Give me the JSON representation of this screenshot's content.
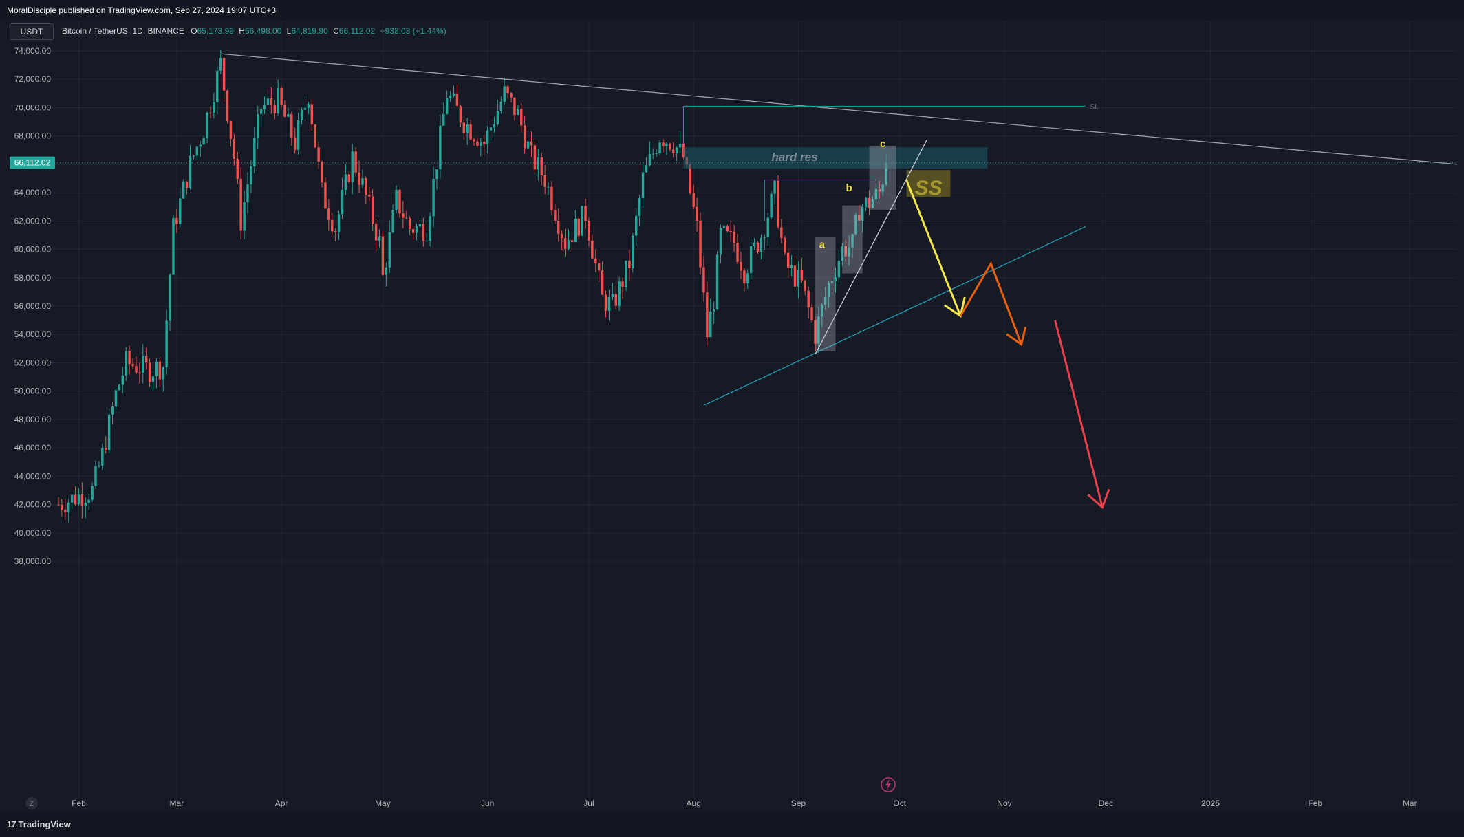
{
  "header": {
    "published_text": "MoralDisciple published on TradingView.com, Sep 27, 2024 19:07 UTC+3"
  },
  "symbol_box": {
    "label": "USDT"
  },
  "legend": {
    "symbol": "Bitcoin / TetherUS, 1D, BINANCE",
    "o_label": "O",
    "o_value": "65,173.99",
    "h_label": "H",
    "h_value": "66,498.00",
    "l_label": "L",
    "l_value": "64,819.90",
    "c_label": "C",
    "c_value": "66,112.02",
    "change": "+938.03 (+1.44%)"
  },
  "footer": {
    "brand": "TradingView",
    "brand_mark": "17",
    "scale_z": "Z"
  },
  "colors": {
    "background": "#161a25",
    "grid": "#232734",
    "up": "#26a69a",
    "down": "#ef5350",
    "trendline": "#9ba1b0",
    "cyan_line": "#1e9fb4",
    "yellow_arrow": "#f5e84a",
    "orange_arrow": "#e8600f",
    "red_arrow": "#e8404c",
    "price_label": "#26a69a"
  },
  "chart_data": {
    "type": "candlestick",
    "symbol": "Bitcoin / TetherUS",
    "interval": "1D",
    "exchange": "BINANCE",
    "last_price": 66112.02,
    "last_price_label": "66,112.02",
    "y_axis": {
      "range": [
        37000,
        75000
      ],
      "ticks": [
        74000,
        72000,
        70000,
        68000,
        66000,
        64000,
        62000,
        60000,
        58000,
        56000,
        54000,
        52000,
        50000,
        48000,
        46000,
        44000,
        42000,
        40000,
        38000
      ],
      "tick_labels": [
        "74,000.00",
        "72,000.00",
        "70,000.00",
        "68,000.00",
        "64,000.00",
        "62,000.00",
        "60,000.00",
        "58,000.00",
        "56,000.00",
        "54,000.00",
        "52,000.00",
        "50,000.00",
        "48,000.00",
        "46,000.00",
        "44,000.00",
        "42,000.00",
        "40,000.00",
        "38,000.00"
      ],
      "tick_label_values": [
        74000,
        72000,
        70000,
        68000,
        64000,
        62000,
        60000,
        58000,
        56000,
        54000,
        52000,
        50000,
        48000,
        46000,
        44000,
        42000,
        40000,
        38000
      ]
    },
    "x_axis": {
      "range": [
        "2024-01-26",
        "2025-03-15"
      ],
      "ticks": [
        {
          "date": "2024-02-01",
          "label": "Feb"
        },
        {
          "date": "2024-03-01",
          "label": "Mar"
        },
        {
          "date": "2024-04-01",
          "label": "Apr"
        },
        {
          "date": "2024-05-01",
          "label": "May"
        },
        {
          "date": "2024-06-01",
          "label": "Jun"
        },
        {
          "date": "2024-07-01",
          "label": "Jul"
        },
        {
          "date": "2024-08-01",
          "label": "Aug"
        },
        {
          "date": "2024-09-01",
          "label": "Sep"
        },
        {
          "date": "2024-10-01",
          "label": "Oct"
        },
        {
          "date": "2024-11-01",
          "label": "Nov"
        },
        {
          "date": "2024-12-01",
          "label": "Dec"
        },
        {
          "date": "2025-01-01",
          "label": "2025"
        },
        {
          "date": "2025-02-01",
          "label": "Feb"
        },
        {
          "date": "2025-03-01",
          "label": "Mar"
        }
      ]
    },
    "price_path": [
      [
        "2024-01-26",
        42000
      ],
      [
        "2024-02-05",
        43000
      ],
      [
        "2024-02-08",
        45500
      ],
      [
        "2024-02-12",
        49800
      ],
      [
        "2024-02-15",
        52000
      ],
      [
        "2024-02-22",
        51500
      ],
      [
        "2024-02-26",
        51800
      ],
      [
        "2024-02-29",
        61500
      ],
      [
        "2024-03-05",
        66000
      ],
      [
        "2024-03-09",
        68500
      ],
      [
        "2024-03-14",
        73100
      ],
      [
        "2024-03-18",
        66500
      ],
      [
        "2024-03-20",
        62000
      ],
      [
        "2024-03-26",
        70000
      ],
      [
        "2024-03-31",
        70500
      ],
      [
        "2024-04-05",
        67500
      ],
      [
        "2024-04-09",
        71000
      ],
      [
        "2024-04-13",
        64000
      ],
      [
        "2024-04-17",
        61500
      ],
      [
        "2024-04-22",
        66500
      ],
      [
        "2024-04-25",
        64500
      ],
      [
        "2024-04-30",
        60500
      ],
      [
        "2024-05-01",
        58000
      ],
      [
        "2024-05-05",
        63500
      ],
      [
        "2024-05-09",
        61500
      ],
      [
        "2024-05-14",
        61500
      ],
      [
        "2024-05-20",
        71000
      ],
      [
        "2024-05-25",
        69000
      ],
      [
        "2024-05-31",
        67500
      ],
      [
        "2024-06-06",
        71000
      ],
      [
        "2024-06-10",
        69500
      ],
      [
        "2024-06-14",
        66500
      ],
      [
        "2024-06-18",
        65000
      ],
      [
        "2024-06-24",
        60500
      ],
      [
        "2024-06-30",
        62500
      ],
      [
        "2024-07-05",
        56500
      ],
      [
        "2024-07-08",
        56000
      ],
      [
        "2024-07-13",
        59000
      ],
      [
        "2024-07-17",
        65000
      ],
      [
        "2024-07-22",
        68000
      ],
      [
        "2024-07-26",
        67500
      ],
      [
        "2024-07-29",
        66500
      ],
      [
        "2024-08-02",
        61500
      ],
      [
        "2024-08-05",
        54000
      ],
      [
        "2024-08-07",
        56500
      ],
      [
        "2024-08-09",
        61000
      ],
      [
        "2024-08-13",
        60500
      ],
      [
        "2024-08-16",
        58500
      ],
      [
        "2024-08-21",
        61000
      ],
      [
        "2024-08-25",
        64000
      ],
      [
        "2024-08-28",
        59000
      ],
      [
        "2024-09-02",
        57500
      ],
      [
        "2024-09-06",
        54000
      ],
      [
        "2024-09-10",
        57500
      ],
      [
        "2024-09-14",
        60000
      ],
      [
        "2024-09-17",
        60300
      ],
      [
        "2024-09-19",
        62900
      ],
      [
        "2024-09-22",
        63300
      ],
      [
        "2024-09-25",
        64000
      ],
      [
        "2024-09-27",
        66112
      ]
    ],
    "annotations": [
      {
        "type": "trendline",
        "name": "descending-resistance",
        "from": [
          "2024-03-14",
          73800
        ],
        "to": [
          "2025-03-15",
          66000
        ]
      },
      {
        "type": "hline",
        "name": "SL-line",
        "label": "SL",
        "from": [
          "2024-07-29",
          70100
        ],
        "to": [
          "2024-11-25",
          70100
        ]
      },
      {
        "type": "zone",
        "name": "hard-res-zone",
        "label": "hard res",
        "from": [
          "2024-07-29",
          65700
        ],
        "to": [
          "2024-10-27",
          67200
        ]
      },
      {
        "type": "zone",
        "name": "ss-zone",
        "label": "SS",
        "from": [
          "2024-10-03",
          63700
        ],
        "to": [
          "2024-10-16",
          65600
        ]
      },
      {
        "type": "hline",
        "name": "swing-high-line",
        "from": [
          "2024-08-22",
          64900
        ],
        "to": [
          "2024-09-24",
          64900
        ]
      },
      {
        "type": "trendline",
        "name": "rising-support",
        "from": [
          "2024-08-04",
          49000
        ],
        "to": [
          "2024-11-25",
          61600
        ]
      },
      {
        "type": "trendline",
        "name": "wedge-line",
        "from": [
          "2024-09-06",
          52600
        ],
        "to": [
          "2024-10-09",
          67700
        ]
      },
      {
        "type": "box",
        "name": "wave-a-box",
        "from": [
          "2024-09-06",
          52800
        ],
        "to": [
          "2024-09-12",
          60900
        ]
      },
      {
        "type": "box",
        "name": "wave-b-box",
        "from": [
          "2024-09-14",
          58300
        ],
        "to": [
          "2024-09-20",
          63100
        ]
      },
      {
        "type": "box",
        "name": "wave-c-box",
        "from": [
          "2024-09-22",
          62800
        ],
        "to": [
          "2024-09-30",
          67300
        ]
      },
      {
        "type": "label",
        "name": "wave-a-label",
        "text": "a",
        "at": [
          "2024-09-08",
          60100
        ]
      },
      {
        "type": "label",
        "name": "wave-b-label",
        "text": "b",
        "at": [
          "2024-09-16",
          64100
        ]
      },
      {
        "type": "label",
        "name": "wave-c-label",
        "text": "c",
        "at": [
          "2024-09-26",
          67200
        ]
      },
      {
        "type": "arrow",
        "name": "yellow-arrow",
        "color": "yellow",
        "from": [
          "2024-10-03",
          64900
        ],
        "to": [
          "2024-10-19",
          55300
        ]
      },
      {
        "type": "polyline",
        "name": "orange-arrow",
        "color": "orange",
        "points": [
          [
            "2024-10-19",
            55300
          ],
          [
            "2024-10-28",
            59000
          ],
          [
            "2024-11-06",
            53300
          ]
        ]
      },
      {
        "type": "arrow",
        "name": "red-arrow",
        "color": "red",
        "from": [
          "2024-11-16",
          55000
        ],
        "to": [
          "2024-11-30",
          41800
        ]
      }
    ]
  }
}
